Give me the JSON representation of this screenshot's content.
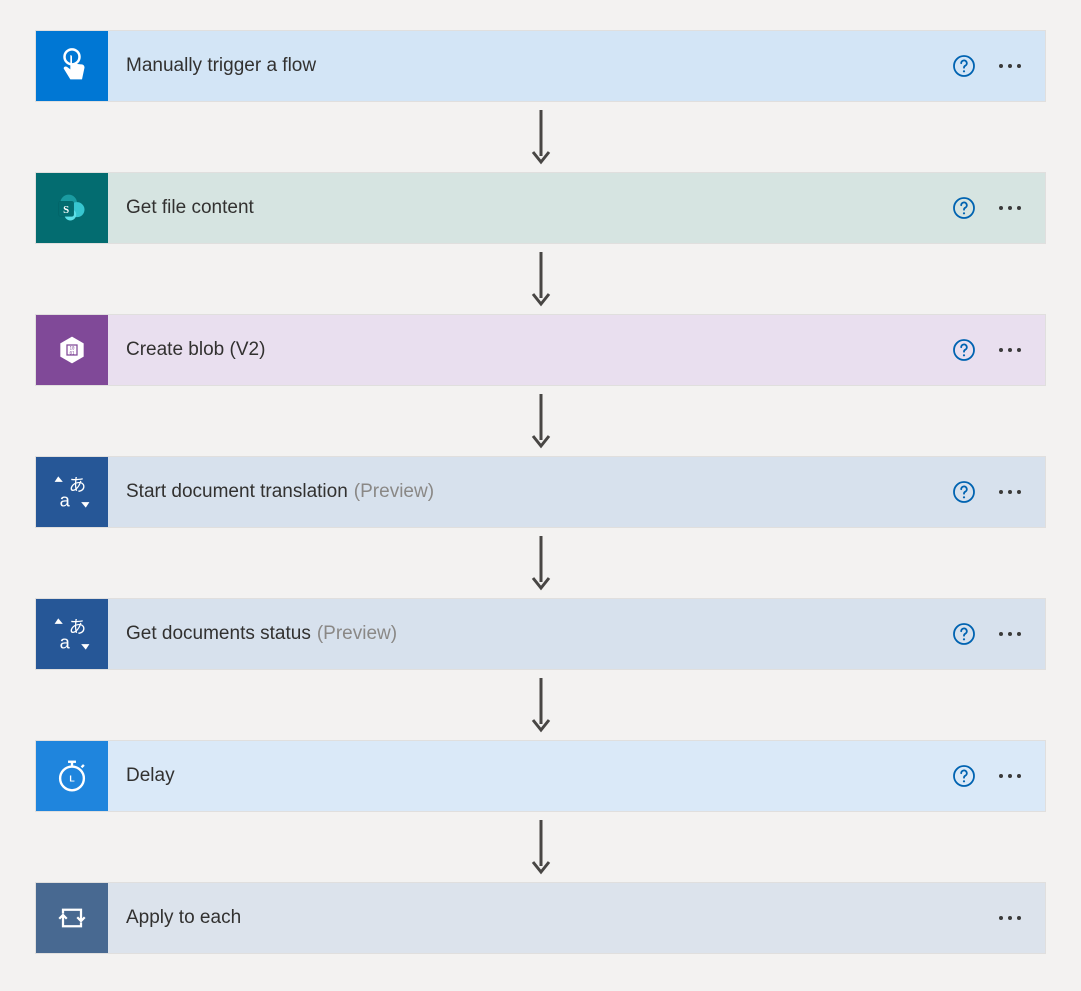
{
  "flow": {
    "background_color": "#f3f2f1",
    "help_icon_color": "#0063b1",
    "arrow_color": "#484644",
    "steps": [
      {
        "id": "manual-trigger",
        "title": "Manually trigger a flow",
        "suffix": "",
        "icon_bg": "#0077d4",
        "body_bg": "#d3e5f6",
        "icon_type": "touch",
        "has_help": true,
        "has_menu": true
      },
      {
        "id": "get-file-content",
        "title": "Get file content",
        "suffix": "",
        "icon_bg": "#036c70",
        "body_bg": "#d6e4e1",
        "icon_type": "sharepoint",
        "has_help": true,
        "has_menu": true
      },
      {
        "id": "create-blob",
        "title": "Create blob (V2)",
        "suffix": "",
        "icon_bg": "#804998",
        "body_bg": "#e9dfef",
        "icon_type": "blob",
        "has_help": true,
        "has_menu": true
      },
      {
        "id": "start-translation",
        "title": "Start document translation",
        "suffix": "(Preview)",
        "icon_bg": "#265797",
        "body_bg": "#d7e1ed",
        "icon_type": "translate",
        "has_help": true,
        "has_menu": true
      },
      {
        "id": "get-documents-status",
        "title": "Get documents status",
        "suffix": "(Preview)",
        "icon_bg": "#265797",
        "body_bg": "#d7e1ed",
        "icon_type": "translate",
        "has_help": true,
        "has_menu": true
      },
      {
        "id": "delay",
        "title": "Delay",
        "suffix": "",
        "icon_bg": "#1f85dd",
        "body_bg": "#dae9f8",
        "icon_type": "stopwatch",
        "has_help": true,
        "has_menu": true
      },
      {
        "id": "apply-to-each",
        "title": "Apply to each",
        "suffix": "",
        "icon_bg": "#486991",
        "body_bg": "#dce3ec",
        "icon_type": "loop",
        "has_help": false,
        "has_menu": true
      }
    ]
  }
}
